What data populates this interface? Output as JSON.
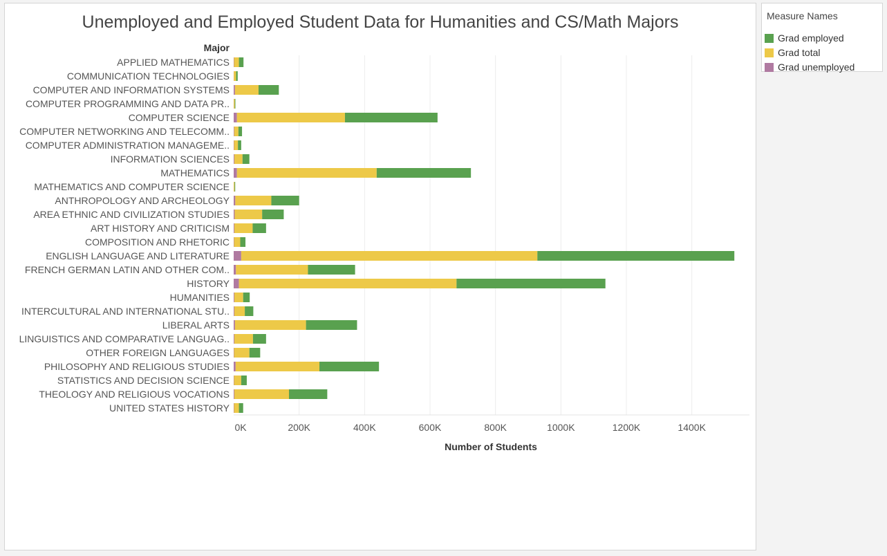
{
  "legend": {
    "title": "Measure Names",
    "items": [
      {
        "label": "Grad employed",
        "color": "#59a14f"
      },
      {
        "label": "Grad total",
        "color": "#edc948"
      },
      {
        "label": "Grad unemployed",
        "color": "#b07aa1"
      }
    ]
  },
  "chart_data": {
    "type": "bar",
    "orientation": "horizontal",
    "stacked": true,
    "title": "Unemployed and Employed Student Data for Humanities and CS/Math Majors",
    "ylabel": "Major",
    "xlabel": "Number of Students",
    "xlim": [
      0,
      1500000
    ],
    "xticks": [
      0,
      200000,
      400000,
      600000,
      800000,
      1000000,
      1200000,
      1400000
    ],
    "xtick_labels": [
      "0K",
      "200K",
      "400K",
      "600K",
      "800K",
      "1000K",
      "1200K",
      "1400K"
    ],
    "grid": true,
    "legend_position": "right",
    "categories": [
      "APPLIED MATHEMATICS",
      "COMMUNICATION TECHNOLOGIES",
      "COMPUTER AND INFORMATION SYSTEMS",
      "COMPUTER PROGRAMMING AND DATA PR..",
      "COMPUTER SCIENCE",
      "COMPUTER NETWORKING AND TELECOMM..",
      "COMPUTER ADMINISTRATION MANAGEME..",
      "INFORMATION SCIENCES",
      "MATHEMATICS",
      "MATHEMATICS AND COMPUTER SCIENCE",
      "ANTHROPOLOGY AND ARCHEOLOGY",
      "AREA ETHNIC AND CIVILIZATION STUDIES",
      "ART HISTORY AND CRITICISM",
      "COMPOSITION AND RHETORIC",
      "ENGLISH LANGUAGE AND LITERATURE",
      "FRENCH GERMAN LATIN AND OTHER COM..",
      "HISTORY",
      "HUMANITIES",
      "INTERCULTURAL AND INTERNATIONAL STU..",
      "LIBERAL ARTS",
      "LINGUISTICS AND COMPARATIVE LANGUAG..",
      "OTHER FOREIGN LANGUAGES",
      "PHILOSOPHY AND RELIGIOUS STUDIES",
      "STATISTICS AND DECISION SCIENCE",
      "THEOLOGY AND RELIGIOUS VOCATIONS",
      "UNITED STATES HISTORY"
    ],
    "series": [
      {
        "name": "Grad unemployed",
        "color": "#b07aa1",
        "values": [
          1000,
          300,
          4000,
          300,
          10000,
          1500,
          1000,
          2000,
          10000,
          200,
          5000,
          3000,
          2000,
          1000,
          23000,
          7000,
          16000,
          2000,
          2000,
          4000,
          2000,
          1000,
          6000,
          1000,
          2000,
          1000
        ]
      },
      {
        "name": "Grad total",
        "color": "#edc948",
        "values": [
          15000,
          7000,
          72000,
          3000,
          330000,
          13000,
          12000,
          25000,
          427000,
          2500,
          110000,
          84000,
          56000,
          19000,
          905000,
          220000,
          665000,
          27000,
          32000,
          217000,
          57000,
          47000,
          256000,
          22000,
          167000,
          15000
        ]
      },
      {
        "name": "Grad employed",
        "color": "#59a14f",
        "values": [
          14000,
          5000,
          62000,
          2000,
          283000,
          11000,
          10000,
          21000,
          288000,
          2000,
          85000,
          66000,
          41000,
          16000,
          602000,
          144000,
          455000,
          20000,
          26000,
          156000,
          40000,
          33000,
          182000,
          17000,
          117000,
          13000
        ]
      }
    ]
  }
}
